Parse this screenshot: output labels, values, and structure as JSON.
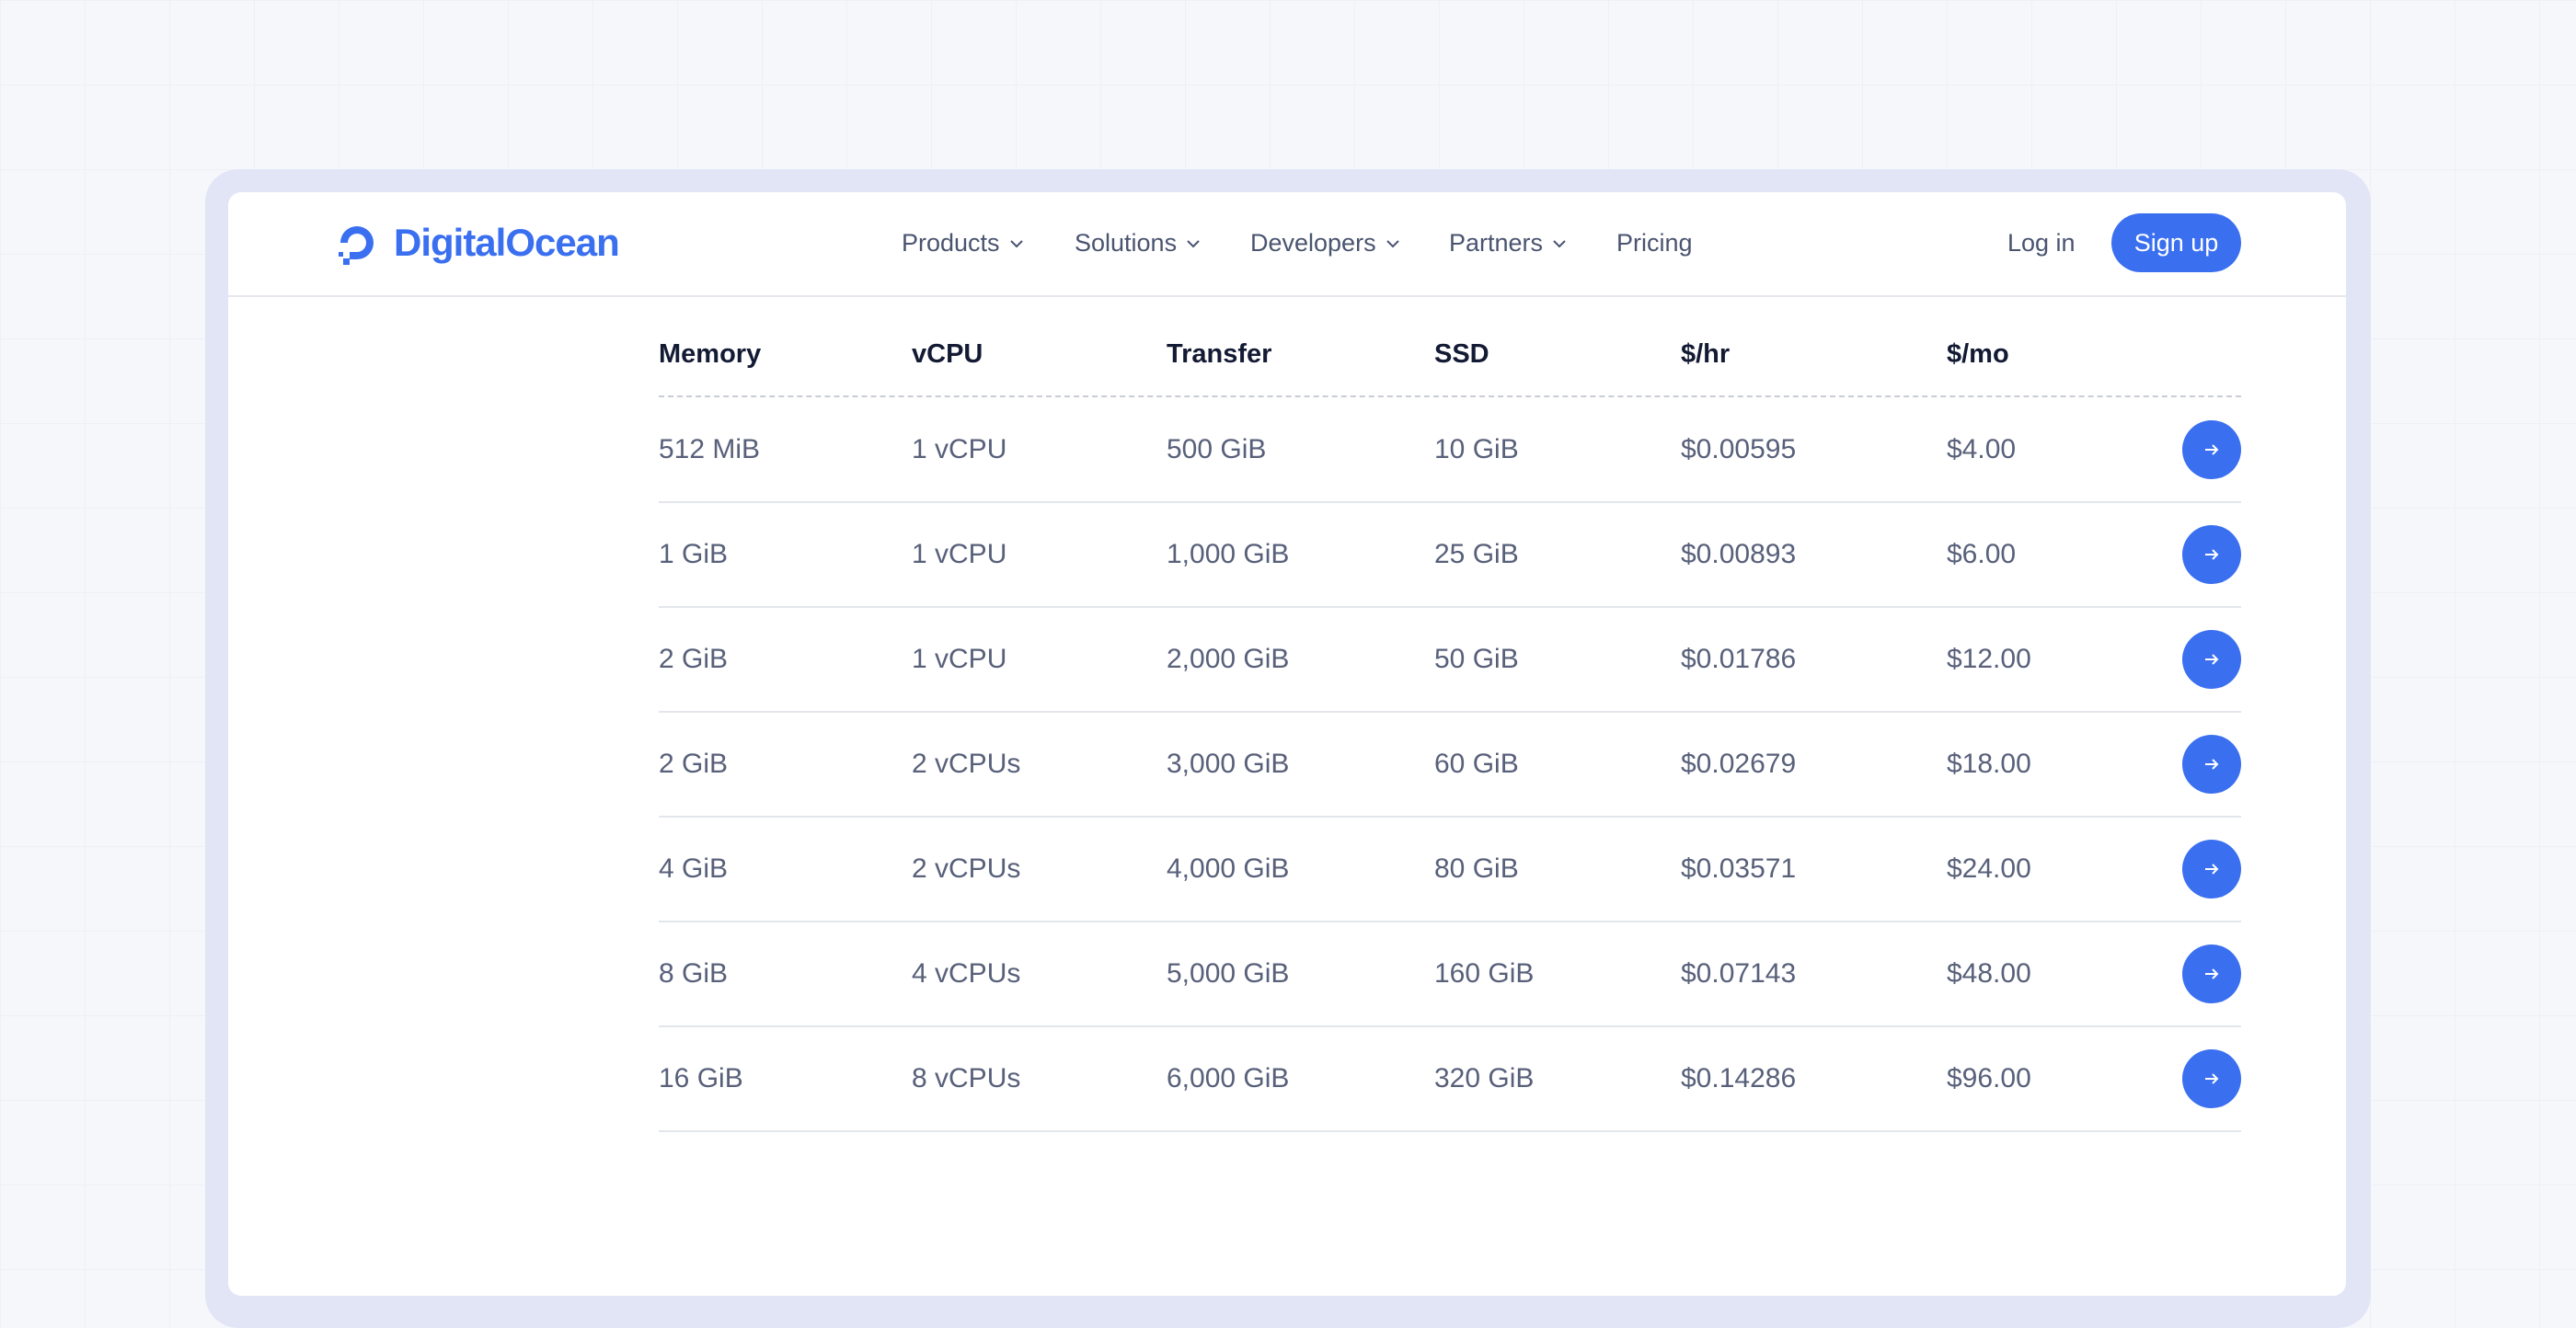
{
  "nav": {
    "logo": "DigitalOcean",
    "menu": [
      "Products",
      "Solutions",
      "Developers",
      "Partners"
    ],
    "pricing": "Pricing",
    "login": "Log in",
    "signup": "Sign up"
  },
  "table": {
    "columns": [
      "Memory",
      "vCPU",
      "Transfer",
      "SSD",
      "$/hr",
      "$/mo"
    ],
    "rows": [
      [
        "512 MiB",
        "1 vCPU",
        "500 GiB",
        "10 GiB",
        "$0.00595",
        "$4.00"
      ],
      [
        "1 GiB",
        "1 vCPU",
        "1,000 GiB",
        "25 GiB",
        "$0.00893",
        "$6.00"
      ],
      [
        "2 GiB",
        "1 vCPU",
        "2,000 GiB",
        "50 GiB",
        "$0.01786",
        "$12.00"
      ],
      [
        "2 GiB",
        "2 vCPUs",
        "3,000 GiB",
        "60 GiB",
        "$0.02679",
        "$18.00"
      ],
      [
        "4 GiB",
        "2 vCPUs",
        "4,000 GiB",
        "80 GiB",
        "$0.03571",
        "$24.00"
      ],
      [
        "8 GiB",
        "4 vCPUs",
        "5,000 GiB",
        "160 GiB",
        "$0.07143",
        "$48.00"
      ],
      [
        "16 GiB",
        "8 vCPUs",
        "6,000 GiB",
        "320 GiB",
        "$0.14286",
        "$96.00"
      ]
    ]
  }
}
